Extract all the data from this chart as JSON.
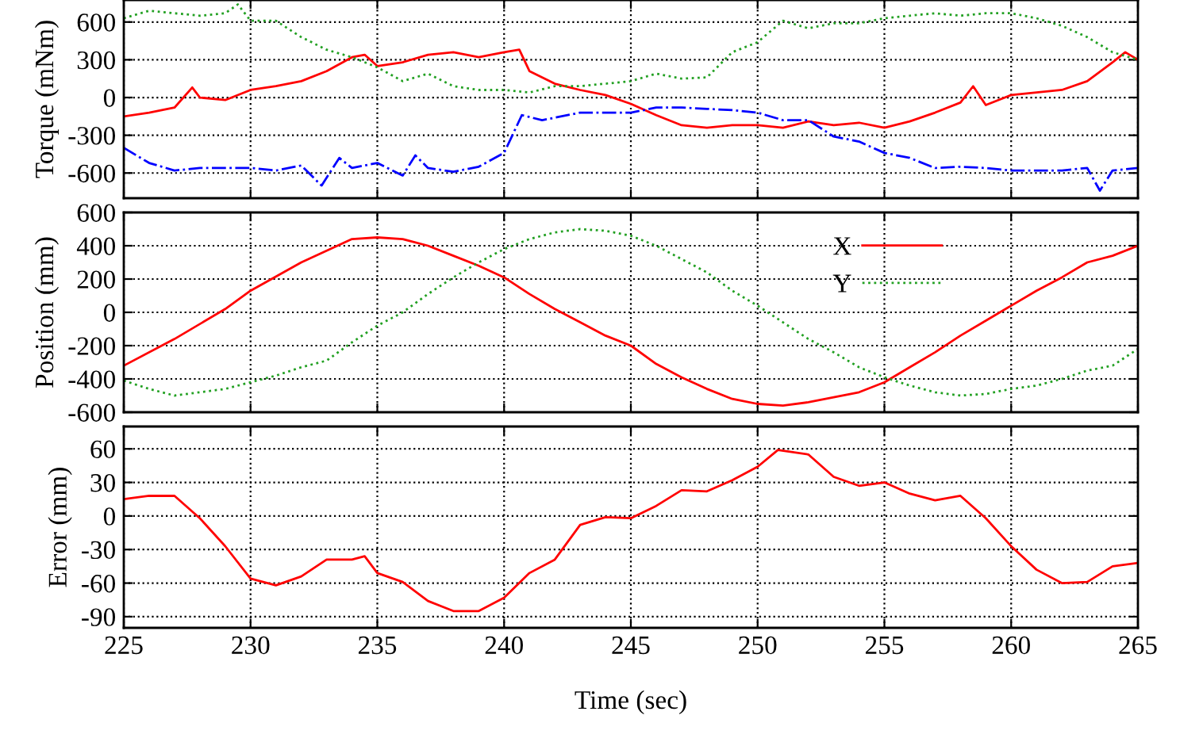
{
  "chart_data": [
    {
      "type": "line",
      "ylabel": "Torque (mNm)",
      "xlim": [
        225,
        265
      ],
      "xticks": [
        225,
        230,
        235,
        240,
        245,
        250,
        255,
        260,
        265
      ],
      "ylim": [
        -800,
        775
      ],
      "yticks": [
        -600,
        -300,
        0,
        300,
        600
      ],
      "grid": true,
      "legend": false,
      "tick_labels": "y",
      "series": [
        {
          "color": "#ff0000",
          "line_style": "solid",
          "x": [
            225,
            226,
            227,
            227.7,
            228,
            229,
            230,
            231,
            232,
            233,
            234,
            234.5,
            235,
            236,
            237,
            238,
            239,
            240,
            240.6,
            241,
            242,
            243,
            244,
            245,
            246,
            247,
            248,
            249,
            250,
            251,
            252,
            253,
            254,
            255,
            256,
            257,
            258,
            258.5,
            259,
            260,
            261,
            262,
            263,
            264,
            264.5,
            265
          ],
          "values": [
            -150,
            -120,
            -80,
            80,
            0,
            -20,
            60,
            90,
            130,
            210,
            320,
            340,
            250,
            280,
            340,
            360,
            320,
            360,
            380,
            210,
            110,
            60,
            20,
            -50,
            -140,
            -220,
            -240,
            -220,
            -220,
            -240,
            -190,
            -220,
            -200,
            -240,
            -190,
            -120,
            -40,
            90,
            -60,
            20,
            40,
            60,
            130,
            280,
            360,
            300
          ]
        },
        {
          "color": "#22a022",
          "line_style": "dotted",
          "x": [
            225,
            226,
            227,
            228,
            229,
            229.5,
            230,
            231,
            232,
            233,
            234,
            235,
            236,
            237,
            238,
            239,
            240,
            241,
            242,
            243,
            244,
            245,
            246,
            247,
            248,
            249,
            250,
            251,
            252,
            253,
            254,
            255,
            256,
            257,
            258,
            259,
            260,
            261,
            262,
            263,
            264,
            265
          ],
          "values": [
            630,
            690,
            670,
            650,
            670,
            740,
            610,
            610,
            480,
            380,
            320,
            240,
            130,
            190,
            90,
            60,
            60,
            40,
            90,
            90,
            110,
            130,
            190,
            150,
            160,
            360,
            440,
            610,
            550,
            590,
            590,
            630,
            650,
            670,
            650,
            670,
            670,
            630,
            570,
            480,
            360,
            300
          ]
        },
        {
          "color": "#0000ff",
          "line_style": "dashdot",
          "x": [
            225,
            226,
            227,
            228,
            229,
            230,
            231,
            232,
            232.8,
            233.5,
            234,
            235,
            236,
            236.5,
            237,
            238,
            239,
            240,
            240.7,
            241.5,
            242,
            243,
            244,
            245,
            246,
            247,
            248,
            249,
            250,
            251,
            252,
            253,
            254,
            255,
            256,
            257,
            258,
            259,
            260,
            261,
            262,
            263,
            263.5,
            264,
            265
          ],
          "values": [
            -400,
            -520,
            -580,
            -560,
            -560,
            -560,
            -580,
            -540,
            -700,
            -480,
            -560,
            -520,
            -620,
            -460,
            -560,
            -590,
            -550,
            -440,
            -140,
            -180,
            -160,
            -120,
            -120,
            -120,
            -80,
            -80,
            -90,
            -100,
            -120,
            -180,
            -180,
            -310,
            -350,
            -440,
            -480,
            -560,
            -550,
            -560,
            -580,
            -580,
            -580,
            -560,
            -740,
            -580,
            -560
          ]
        }
      ]
    },
    {
      "type": "line",
      "ylabel": "Position (mm)",
      "xlim": [
        225,
        265
      ],
      "xticks": [
        225,
        230,
        235,
        240,
        245,
        250,
        255,
        260,
        265
      ],
      "ylim": [
        -600,
        600
      ],
      "yticks": [
        -600,
        -400,
        -200,
        0,
        200,
        400,
        600
      ],
      "grid": true,
      "legend": "top right",
      "tick_labels": "y",
      "series": [
        {
          "name": "X",
          "color": "#ff0000",
          "line_style": "solid",
          "x": [
            225,
            227,
            229,
            230,
            232,
            234,
            235,
            236,
            237,
            238,
            239,
            240,
            241,
            242,
            243,
            244,
            245,
            246,
            247,
            248,
            249,
            250,
            251,
            252,
            253,
            254,
            255,
            256,
            257,
            258,
            259,
            260,
            261,
            262,
            263,
            264,
            265
          ],
          "values": [
            -320,
            -160,
            20,
            130,
            300,
            440,
            450,
            440,
            400,
            340,
            280,
            210,
            110,
            20,
            -60,
            -140,
            -200,
            -310,
            -390,
            -460,
            -520,
            -550,
            -560,
            -540,
            -510,
            -480,
            -420,
            -330,
            -240,
            -140,
            -50,
            40,
            130,
            210,
            300,
            340,
            400
          ]
        },
        {
          "name": "Y",
          "color": "#22a022",
          "line_style": "dotted",
          "x": [
            225,
            226,
            227,
            228,
            229,
            230,
            231,
            232,
            233,
            234,
            235,
            236,
            237,
            238,
            239,
            240,
            241,
            242,
            243,
            244,
            245,
            246,
            247,
            248,
            249,
            250,
            251,
            252,
            253,
            254,
            255,
            256,
            257,
            258,
            259,
            260,
            261,
            262,
            263,
            264,
            265
          ],
          "values": [
            -410,
            -460,
            -500,
            -480,
            -460,
            -420,
            -380,
            -330,
            -290,
            -180,
            -80,
            0,
            110,
            210,
            300,
            380,
            440,
            480,
            500,
            490,
            460,
            400,
            320,
            240,
            130,
            40,
            -60,
            -160,
            -240,
            -330,
            -390,
            -440,
            -480,
            -500,
            -490,
            -460,
            -440,
            -400,
            -350,
            -320,
            -220
          ]
        }
      ]
    },
    {
      "type": "line",
      "ylabel": "Error (mm)",
      "xlabel": "Time (sec)",
      "xlim": [
        225,
        265
      ],
      "xticks": [
        225,
        230,
        235,
        240,
        245,
        250,
        255,
        260,
        265
      ],
      "ylim": [
        -100,
        80
      ],
      "yticks": [
        -90,
        -60,
        -30,
        0,
        30,
        60
      ],
      "grid": true,
      "legend": false,
      "series": [
        {
          "color": "#ff0000",
          "line_style": "solid",
          "x": [
            225,
            226,
            227,
            228,
            229,
            230,
            231,
            232,
            233,
            234,
            234.5,
            235,
            236,
            237,
            238,
            239,
            240,
            241,
            242,
            243,
            244,
            245,
            246,
            247,
            248,
            249,
            250,
            250.8,
            252,
            253,
            254,
            255,
            256,
            257,
            258,
            259,
            260,
            261,
            262,
            263,
            264,
            265
          ],
          "values": [
            15,
            18,
            18,
            -2,
            -27,
            -56,
            -62,
            -54,
            -39,
            -39,
            -36,
            -51,
            -59,
            -76,
            -85,
            -85,
            -73,
            -51,
            -39,
            -8,
            -1,
            -2,
            9,
            23,
            22,
            32,
            44,
            59,
            55,
            35,
            27,
            30,
            20,
            14,
            18,
            -2,
            -27,
            -48,
            -60,
            -59,
            -45,
            -42
          ]
        }
      ]
    }
  ]
}
